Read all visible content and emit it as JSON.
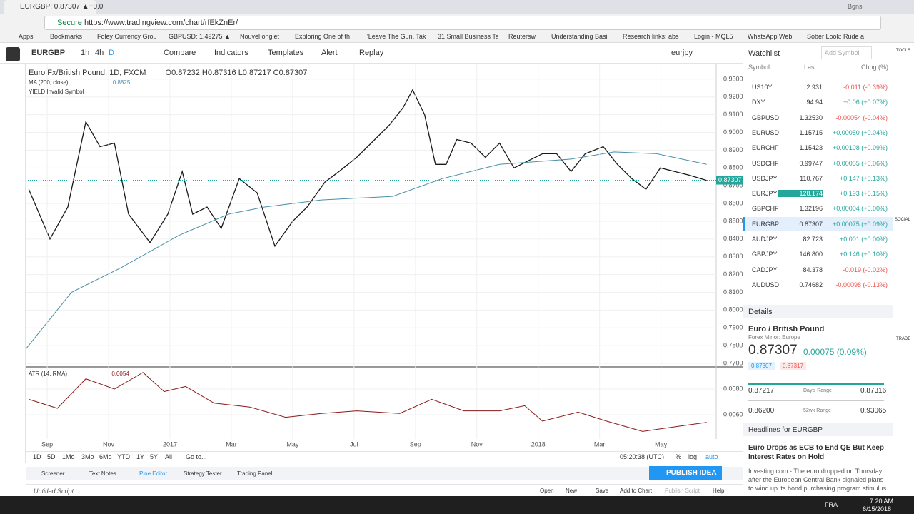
{
  "browser": {
    "tab": "EURGBP: 0.87307 ▲+0.0",
    "secure": "Secure",
    "url": "https://www.tradingview.com/chart/rfEkZnEr/",
    "user": "Bgns",
    "bookmarks": [
      "Apps",
      "Bookmarks",
      "Foley Currency Grou",
      "GBPUSD: 1.49275 ▲",
      "Nouvel onglet",
      "Exploring One of th",
      "'Leave The Gun, Tak",
      "31 Small Business Ta",
      "Reutersw",
      "Understanding Basi",
      "Research links: abs",
      "Login - MQL5",
      "WhatsApp Web",
      "Sober Look: Rude a"
    ]
  },
  "toolbar": {
    "symbol": "EURGBP",
    "intervals": [
      "1h",
      "4h",
      "D"
    ],
    "buttons": [
      "Compare",
      "Indicators",
      "Templates",
      "Alert",
      "Replay"
    ],
    "layout": "eurjpy"
  },
  "legend": {
    "ohlc": [
      "O0.87232",
      "H0.87316",
      "L0.87217",
      "C0.87307"
    ],
    "ma_value": 0.8825,
    "yield": "YIELD Invalid Symbol",
    "atr_value": 0.0054
  },
  "chart_data": [
    {
      "type": "line",
      "xlim": [
        0.3,
        22.8
      ],
      "ylim": [
        0.7684,
        0.9384
      ],
      "yticks": [
        {
          "value": 0.77,
          "label": "0.77000"
        },
        {
          "value": 0.78,
          "label": "0.78000"
        },
        {
          "value": 0.79,
          "label": "0.79000"
        },
        {
          "value": 0.8,
          "label": "0.80000"
        },
        {
          "value": 0.81,
          "label": "0.81000"
        },
        {
          "value": 0.82,
          "label": "0.82000"
        },
        {
          "value": 0.83,
          "label": "0.83000"
        },
        {
          "value": 0.84,
          "label": "0.84000"
        },
        {
          "value": 0.85,
          "label": "0.85000"
        },
        {
          "value": 0.86,
          "label": "0.86000"
        },
        {
          "value": 0.87,
          "label": "0.87000"
        },
        {
          "value": 0.88,
          "label": "0.88000"
        },
        {
          "value": 0.89,
          "label": "0.89000"
        },
        {
          "value": 0.9,
          "label": "0.90000"
        },
        {
          "value": 0.91,
          "label": "0.91000"
        },
        {
          "value": 0.92,
          "label": "0.92000"
        },
        {
          "value": 0.93,
          "label": "0.93000"
        }
      ],
      "grid": true,
      "last_price": 0.87307,
      "series": [
        {
          "name": "Euro Fx/British Pound, 1D, FXCM",
          "color": "#1a1a1a",
          "x": [
            0.4,
            1.09,
            1.67,
            2.26,
            2.72,
            3.19,
            3.65,
            4.35,
            4.93,
            5.4,
            5.74,
            6.21,
            6.67,
            7.26,
            7.84,
            8.42,
            9.0,
            9.47,
            10.05,
            10.51,
            11.09,
            11.56,
            12.14,
            12.6,
            12.91,
            13.3,
            13.65,
            14.0,
            14.35,
            14.81,
            15.28,
            15.74,
            16.21,
            16.67,
            17.14,
            17.6,
            18.07,
            18.53,
            19.12,
            19.58,
            20.05,
            20.51,
            20.98,
            21.44,
            21.91,
            22.49
          ],
          "values": [
            0.868,
            0.84,
            0.858,
            0.906,
            0.892,
            0.894,
            0.854,
            0.838,
            0.854,
            0.878,
            0.854,
            0.858,
            0.846,
            0.874,
            0.866,
            0.836,
            0.85,
            0.858,
            0.872,
            0.878,
            0.886,
            0.894,
            0.904,
            0.914,
            0.924,
            0.91,
            0.882,
            0.882,
            0.896,
            0.894,
            0.886,
            0.894,
            0.88,
            0.884,
            0.888,
            0.888,
            0.878,
            0.888,
            0.892,
            0.882,
            0.874,
            0.868,
            0.88,
            0.878,
            0.876,
            0.873
          ]
        },
        {
          "name": "MA (200, close)",
          "color": "#4a90a8",
          "x": [
            0.3,
            1.79,
            3.42,
            5.28,
            6.91,
            8.07,
            9.93,
            12.26,
            13.88,
            15.74,
            18.07,
            19.47,
            20.86,
            22.49
          ],
          "values": [
            0.778,
            0.81,
            0.824,
            0.842,
            0.854,
            0.858,
            0.862,
            0.864,
            0.874,
            0.882,
            0.885,
            0.889,
            0.888,
            0.882
          ]
        }
      ]
    },
    {
      "type": "line",
      "xlim": [
        0.3,
        22.8
      ],
      "ylim": [
        0.00411,
        0.00967
      ],
      "yticks": [
        {
          "value": 0.006,
          "label": "0.0060"
        },
        {
          "value": 0.008,
          "label": "0.0080"
        }
      ],
      "xticks": [
        {
          "value": 1,
          "label": "Sep"
        },
        {
          "value": 3,
          "label": "Nov"
        },
        {
          "value": 5,
          "label": "2017"
        },
        {
          "value": 7,
          "label": "Mar"
        },
        {
          "value": 9,
          "label": "May"
        },
        {
          "value": 11,
          "label": "Jul"
        },
        {
          "value": 13,
          "label": "Sep"
        },
        {
          "value": 15,
          "label": "Nov"
        },
        {
          "value": 17,
          "label": "2018"
        },
        {
          "value": 19,
          "label": "Mar"
        },
        {
          "value": 21,
          "label": "May"
        }
      ],
      "series": [
        {
          "name": "ATR (14, RMA)",
          "color": "#8b1a1a",
          "x": [
            0.4,
            1.33,
            2.26,
            3.19,
            4.12,
            4.81,
            5.51,
            6.44,
            7.6,
            8.77,
            9.93,
            11.09,
            12.49,
            13.53,
            14.58,
            15.74,
            16.56,
            17.14,
            18.3,
            19.23,
            20.4,
            21.56,
            22.49
          ],
          "values": [
            0.0072,
            0.0065,
            0.0088,
            0.008,
            0.0093,
            0.0078,
            0.0082,
            0.0069,
            0.0066,
            0.0058,
            0.0061,
            0.0063,
            0.0061,
            0.0072,
            0.0063,
            0.0063,
            0.0067,
            0.0055,
            0.0062,
            0.0055,
            0.0047,
            0.0051,
            0.0054
          ]
        }
      ]
    }
  ],
  "bottom": {
    "ranges": [
      "1D",
      "5D",
      "1Mo",
      "3Mo",
      "6Mo",
      "YTD",
      "1Y",
      "5Y",
      "All",
      "Go to..."
    ],
    "time": "05:20:38 (UTC)",
    "scale": [
      "%",
      "log",
      "auto"
    ],
    "tabs": [
      "Screener",
      "Text Notes",
      "Pine Editor",
      "Strategy Tester",
      "Trading Panel"
    ],
    "publish": "PUBLISH IDEA",
    "script": "Untitled Script",
    "script_actions": [
      "Open",
      "New",
      "Save",
      "Add to Chart",
      "Publish Script",
      "Help"
    ]
  },
  "watchlist": {
    "title": "Watchlist",
    "add": "Add Symbol",
    "columns": [
      "Symbol",
      "Last",
      "Chng (%)"
    ],
    "rows": [
      {
        "symbol": "US10Y",
        "last": "2.931",
        "change": "-0.011 (-0.39%)"
      },
      {
        "symbol": "DXY",
        "last": "94.94",
        "change": "+0.06 (+0.07%)"
      },
      {
        "symbol": "GBPUSD",
        "last": "1.32530",
        "change": "-0.00054 (-0.04%)"
      },
      {
        "symbol": "EURUSD",
        "last": "1.15715",
        "change": "+0.00050 (+0.04%)"
      },
      {
        "symbol": "EURCHF",
        "last": "1.15423",
        "change": "+0.00108 (+0.09%)"
      },
      {
        "symbol": "USDCHF",
        "last": "0.99747",
        "change": "+0.00055 (+0.06%)"
      },
      {
        "symbol": "USDJPY",
        "last": "110.767",
        "change": "+0.147 (+0.13%)"
      },
      {
        "symbol": "EURJPY",
        "last": "128.174",
        "change": "+0.193 (+0.15%)"
      },
      {
        "symbol": "GBPCHF",
        "last": "1.32196",
        "change": "+0.00004 (+0.00%)"
      },
      {
        "symbol": "EURGBP",
        "last": "0.87307",
        "change": "+0.00075 (+0.09%)"
      },
      {
        "symbol": "AUDJPY",
        "last": "82.723",
        "change": "+0.001 (+0.00%)"
      },
      {
        "symbol": "GBPJPY",
        "last": "146.800",
        "change": "+0.146 (+0.10%)"
      },
      {
        "symbol": "CADJPY",
        "last": "84.378",
        "change": "-0.019 (-0.02%)"
      },
      {
        "symbol": "AUDUSD",
        "last": "0.74682",
        "change": "-0.00098 (-0.13%)"
      }
    ]
  },
  "details": {
    "title": "Details",
    "name": "Euro / British Pound",
    "category": "Forex Minor: Europe",
    "price": "0.87307",
    "change": "0.00075 (0.09%)",
    "bid": "0.87307",
    "ask": "0.87317",
    "day_low": "0.87217",
    "day_label": "Day's Range",
    "day_high": "0.87316",
    "wk_low": "0.86200",
    "wk_label": "52wk Range",
    "wk_high": "0.93065"
  },
  "headlines": {
    "title": "Headlines for EURGBP",
    "headline": "Euro Drops as ECB to End QE But Keep Interest Rates on Hold",
    "body": "Investing.com - The euro dropped on Thursday after the European Central Bank signaled plans to wind up its bond purchasing program stimulus"
  },
  "sidebar": [
    "TOOLS",
    "SOCIAL",
    "TRADE"
  ],
  "taskbar": {
    "time": "7:20 AM",
    "date": "6/15/2018",
    "lang": "FRA"
  }
}
